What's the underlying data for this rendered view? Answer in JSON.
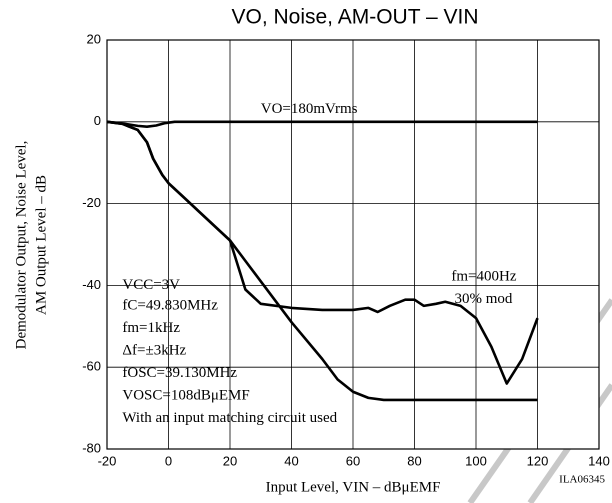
{
  "chart_data": {
    "type": "line",
    "title": "VO, Noise, AM-OUT – VIN",
    "xlabel": "Input Level, VIN – dBμEMF",
    "ylabel": [
      "Demodulator Output, Noise Level,",
      "AM Output Level – dB"
    ],
    "xlim": [
      -20,
      140
    ],
    "xticks": [
      -20,
      0,
      20,
      40,
      60,
      80,
      100,
      120,
      140
    ],
    "ylim": [
      -80,
      20
    ],
    "yticks": [
      -80,
      -60,
      -40,
      -20,
      0,
      20
    ],
    "grid": true,
    "series": [
      {
        "name": "VO",
        "color": "#000000",
        "x": [
          -20,
          -15,
          -10,
          -7,
          -4,
          -1,
          2,
          5,
          120
        ],
        "values": [
          0,
          -0.4,
          -1,
          -1.2,
          -0.9,
          -0.3,
          0,
          0,
          0
        ]
      },
      {
        "name": "Noise",
        "color": "#000000",
        "x": [
          -20,
          -15,
          -10,
          -7,
          -5,
          -2,
          0,
          5,
          10,
          20,
          25,
          30,
          40,
          50,
          55,
          60,
          65,
          70,
          120
        ],
        "values": [
          0,
          -0.5,
          -2,
          -5,
          -9,
          -13,
          -15,
          -18.5,
          -22,
          -29,
          -34,
          -39,
          -49,
          -58,
          -63,
          -66,
          -67.5,
          -68,
          -68
        ]
      },
      {
        "name": "AM-OUT",
        "color": "#000000",
        "x": [
          -20,
          -15,
          -10,
          -7,
          -5,
          -2,
          0,
          5,
          10,
          20,
          25,
          30,
          40,
          50,
          60,
          65,
          68,
          72,
          77,
          80,
          83,
          87,
          90,
          95,
          100,
          105,
          110,
          115,
          120
        ],
        "values": [
          0,
          -0.5,
          -2,
          -5,
          -9,
          -13,
          -15,
          -18.5,
          -22,
          -29,
          -41,
          -44.5,
          -45.5,
          -46,
          -46,
          -45.5,
          -46.5,
          -45,
          -43.5,
          -43.5,
          -45,
          -44.5,
          -44,
          -45,
          -48,
          -55,
          -64,
          -58,
          -48
        ]
      }
    ],
    "annotations": [
      {
        "text": "VO=180mVrms",
        "x": 30,
        "y": 3
      },
      {
        "text": "VCC=3V",
        "x": -15,
        "y": -40
      },
      {
        "text": "fC=49.830MHz",
        "x": -15,
        "y": -45
      },
      {
        "text": "fm=1kHz",
        "x": -15,
        "y": -50.5
      },
      {
        "text": "Δf=±3kHz",
        "x": -15,
        "y": -56
      },
      {
        "text": "fOSC=39.130MHz",
        "x": -15,
        "y": -61.5
      },
      {
        "text": "VOSC=108dBμEMF",
        "x": -15,
        "y": -67
      },
      {
        "text": "With an input matching circuit used",
        "x": -15,
        "y": -72.5
      },
      {
        "text": "fm=400Hz",
        "x": 92,
        "y": -38
      },
      {
        "text": "30% mod",
        "x": 93,
        "y": -43.5
      }
    ],
    "code": "ILA06345"
  }
}
